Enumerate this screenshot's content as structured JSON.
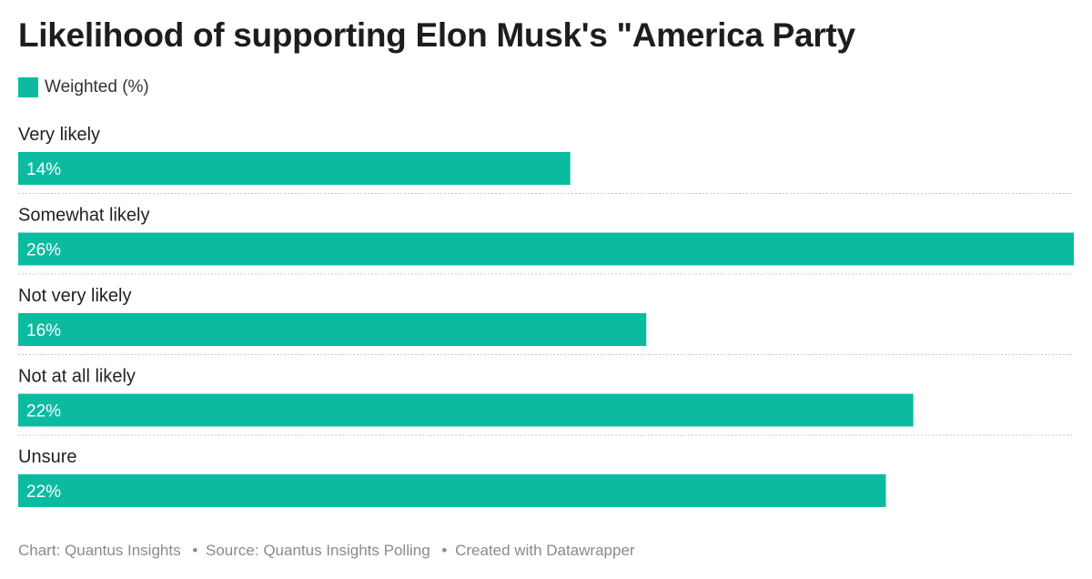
{
  "title": "Likelihood of supporting Elon Musk's \"America Party",
  "legend": {
    "label": "Weighted (%)",
    "color": "#0bbba0"
  },
  "chart_data": {
    "type": "bar",
    "orientation": "horizontal",
    "categories": [
      "Very likely",
      "Somewhat likely",
      "Not very likely",
      "Not at all likely",
      "Unsure"
    ],
    "series": [
      {
        "name": "Weighted (%)",
        "values": [
          14,
          26,
          16,
          22,
          22
        ],
        "labels": [
          "14%",
          "26%",
          "16%",
          "22%",
          "22%"
        ],
        "rel_lengths": [
          0.523,
          1.0,
          0.595,
          0.848,
          0.822
        ]
      }
    ],
    "bar_color": "#0bbba0",
    "label_color": "#ffffff",
    "separator_style": "dotted",
    "grid": false
  },
  "footer": {
    "chart_credit": "Chart: Quantus Insights",
    "separator": "•",
    "source": "Source: Quantus Insights Polling",
    "created": "Created with Datawrapper"
  }
}
